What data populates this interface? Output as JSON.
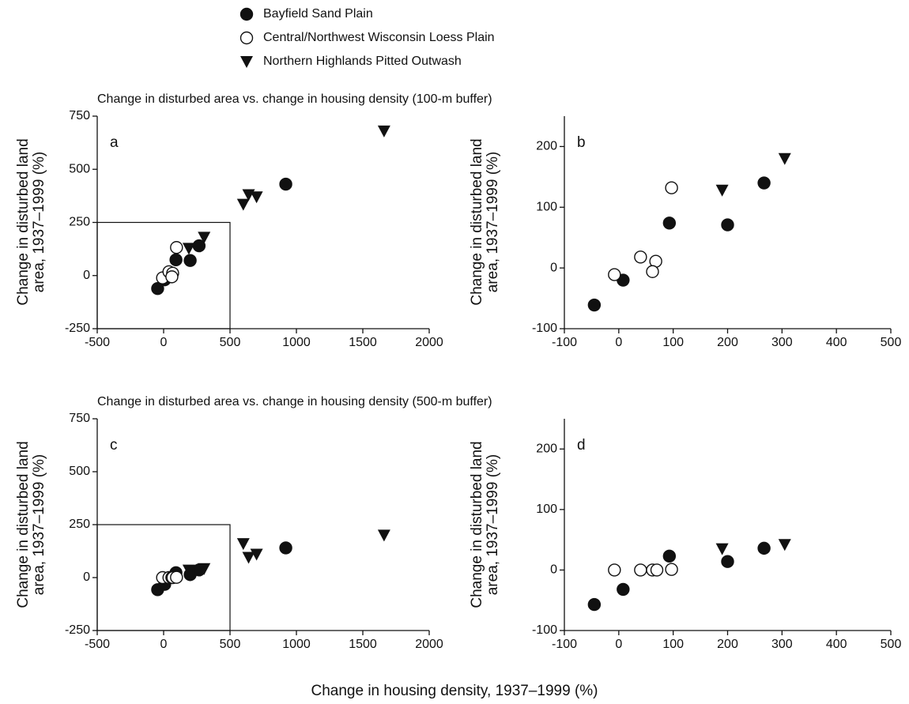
{
  "legend": {
    "entries": [
      "Bayfield Sand Plain",
      "Central/Northwest Wisconsin Loess Plain",
      "Northern Highlands Pitted Outwash"
    ]
  },
  "xlabel": "Change in housing density, 1937–1999 (%)",
  "chart_data": [
    {
      "type": "scatter",
      "title": "Change in disturbed area vs. change in housing density (100-m buffer)",
      "panel_label": "a",
      "ylabel": [
        "Change in disturbed land",
        "area, 1937–1999 (%)"
      ],
      "xlim": [
        -500,
        2000
      ],
      "xticks": [
        -500,
        0,
        500,
        1000,
        1500,
        2000
      ],
      "ylim": [
        -250,
        750
      ],
      "yticks": [
        -250,
        0,
        250,
        500,
        750
      ],
      "inset_box": {
        "xlim": [
          -500,
          500
        ],
        "ylim": [
          -250,
          250
        ]
      },
      "series": [
        {
          "marker": "filled-circle",
          "x": [
            -45,
            8,
            93,
            200,
            267,
            920
          ],
          "values": [
            -61,
            -20,
            74,
            71,
            140,
            430
          ]
        },
        {
          "marker": "open-circle",
          "x": [
            -8,
            40,
            68,
            62,
            97
          ],
          "values": [
            -11,
            18,
            11,
            -6,
            132
          ]
        },
        {
          "marker": "triangle",
          "x": [
            190,
            305,
            600,
            640,
            700,
            1660
          ],
          "values": [
            128,
            180,
            335,
            380,
            370,
            680
          ]
        }
      ]
    },
    {
      "type": "scatter",
      "panel_label": "b",
      "ylabel": [
        "Change in disturbed land",
        "area, 1937–1999 (%)"
      ],
      "xlim": [
        -100,
        500
      ],
      "xticks": [
        -100,
        0,
        100,
        200,
        300,
        400,
        500
      ],
      "ylim": [
        -100,
        250
      ],
      "yticks": [
        -100,
        0,
        100,
        200
      ],
      "series": [
        {
          "marker": "filled-circle",
          "x": [
            -45,
            8,
            93,
            200,
            267
          ],
          "values": [
            -61,
            -20,
            74,
            71,
            140
          ]
        },
        {
          "marker": "open-circle",
          "x": [
            -8,
            40,
            68,
            62,
            97
          ],
          "values": [
            -11,
            18,
            11,
            -6,
            132
          ]
        },
        {
          "marker": "triangle",
          "x": [
            190,
            305
          ],
          "values": [
            128,
            180
          ]
        }
      ]
    },
    {
      "type": "scatter",
      "title": "Change in disturbed area vs. change in housing density (500-m buffer)",
      "panel_label": "c",
      "ylabel": [
        "Change in disturbed land",
        "area, 1937–1999 (%)"
      ],
      "xlim": [
        -500,
        2000
      ],
      "xticks": [
        -500,
        0,
        500,
        1000,
        1500,
        2000
      ],
      "ylim": [
        -250,
        750
      ],
      "yticks": [
        -250,
        0,
        250,
        500,
        750
      ],
      "inset_box": {
        "xlim": [
          -500,
          500
        ],
        "ylim": [
          -250,
          250
        ]
      },
      "series": [
        {
          "marker": "filled-circle",
          "x": [
            -45,
            8,
            93,
            200,
            267,
            920
          ],
          "values": [
            -57,
            -32,
            23,
            14,
            36,
            140
          ]
        },
        {
          "marker": "open-circle",
          "x": [
            -8,
            40,
            62,
            70,
            97
          ],
          "values": [
            0,
            0,
            0,
            0,
            1
          ]
        },
        {
          "marker": "triangle",
          "x": [
            190,
            305,
            600,
            640,
            700,
            1660
          ],
          "values": [
            35,
            42,
            160,
            95,
            110,
            200
          ]
        }
      ]
    },
    {
      "type": "scatter",
      "panel_label": "d",
      "ylabel": [
        "Change in disturbed land",
        "area, 1937–1999 (%)"
      ],
      "xlim": [
        -100,
        500
      ],
      "xticks": [
        -100,
        0,
        100,
        200,
        300,
        400,
        500
      ],
      "ylim": [
        -100,
        250
      ],
      "yticks": [
        -100,
        0,
        100,
        200
      ],
      "series": [
        {
          "marker": "filled-circle",
          "x": [
            -45,
            8,
            93,
            200,
            267
          ],
          "values": [
            -57,
            -32,
            23,
            14,
            36
          ]
        },
        {
          "marker": "open-circle",
          "x": [
            -8,
            40,
            62,
            70,
            97
          ],
          "values": [
            0,
            0,
            0,
            0,
            1
          ]
        },
        {
          "marker": "triangle",
          "x": [
            190,
            305
          ],
          "values": [
            35,
            42
          ]
        }
      ]
    }
  ]
}
